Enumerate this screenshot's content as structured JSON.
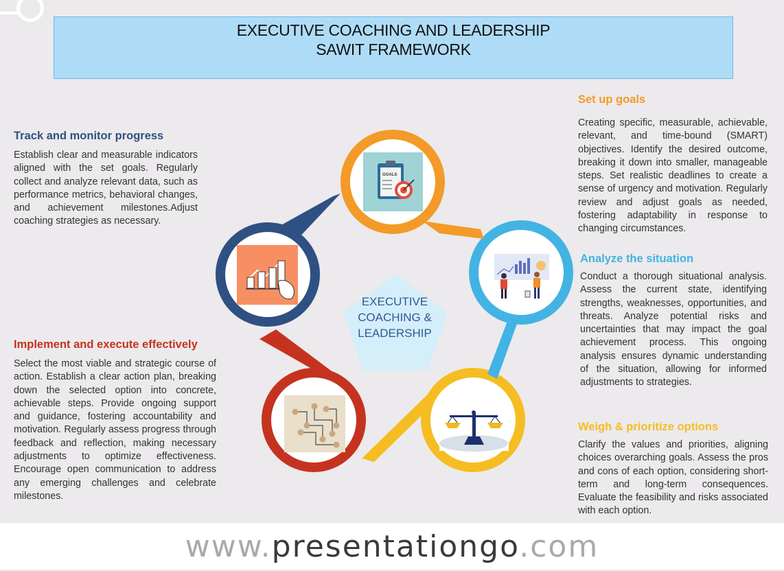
{
  "header": {
    "title_line1": "EXECUTIVE COACHING AND LEADERSHIP",
    "title_line2": "SAWIT FRAMEWORK"
  },
  "center": {
    "line1": "EXECUTIVE",
    "line2": "COACHING &",
    "line3": "LEADERSHIP"
  },
  "steps": [
    {
      "id": "track",
      "heading": "Track and monitor progress",
      "body": "Establish clear and measurable indicators aligned with the set goals. Regularly collect and analyze relevant data, such as performance metrics, behavioral changes, and achievement milestones.Adjust coaching strategies as necessary.",
      "color": "#2f5083"
    },
    {
      "id": "implement",
      "heading": "Implement and execute effectively",
      "body": "Select the most viable and strategic course of action. Establish a clear action plan, breaking down the selected option into concrete, achievable steps. Provide ongoing support and guidance, fostering accountability and motivation. Regularly assess progress through feedback and reflection, making necessary adjustments to optimize effectiveness. Encourage open communication to address any emerging challenges and celebrate milestones.",
      "color": "#c53320"
    },
    {
      "id": "goals",
      "heading": "Set up goals",
      "body": "Creating specific, measurable, achievable, relevant, and time-bound (SMART) objectives. Identify the desired outcome, breaking it down into smaller, manageable steps. Set realistic deadlines to create a sense of urgency and motivation. Regularly review and adjust goals as needed, fostering adaptability in response to changing circumstances.",
      "color": "#f39a28"
    },
    {
      "id": "analyze",
      "heading": "Analyze the situation",
      "body": "Conduct a thorough situational analysis. Assess the current state, identifying strengths, weaknesses, opportunities, and threats. Analyze potential risks and uncertainties that may impact the goal achievement process. This ongoing analysis ensures dynamic understanding of the situation, allowing for informed adjustments to strategies.",
      "color": "#43b3e3"
    },
    {
      "id": "weigh",
      "heading": "Weigh & prioritize options",
      "body": "Clarify the values and priorities, aligning choices overarching goals. Assess the pros and cons of each option, considering short-term and long-term consequences. Evaluate the feasibility and risks associated with each option.",
      "color": "#f6bd22"
    }
  ],
  "icons": {
    "goals_board_label": "GOALS",
    "goals": "goals-clipboard-target-icon",
    "analyze": "people-analyzing-chart-icon",
    "weigh": "balance-scale-icon",
    "implement": "network-pins-icon",
    "track": "growth-chart-hand-icon"
  },
  "footer": {
    "prefix": "www.",
    "brand": "presentationgo",
    "suffix": ".com"
  }
}
